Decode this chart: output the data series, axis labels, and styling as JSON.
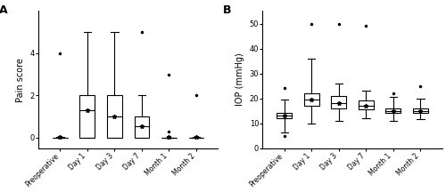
{
  "categories": [
    "Preoperative",
    "Day 1",
    "Day 3",
    "Day 7",
    "Month 1",
    "Month 2"
  ],
  "pain_boxes": [
    {
      "med": 0,
      "q1": 0,
      "q3": 0,
      "whislo": 0,
      "whishi": 0.05,
      "fliers": [
        4.0
      ]
    },
    {
      "med": 1.3,
      "q1": 0,
      "q3": 2,
      "whislo": 0,
      "whishi": 5,
      "fliers": []
    },
    {
      "med": 1.0,
      "q1": 0,
      "q3": 2,
      "whislo": 0,
      "whishi": 5,
      "fliers": []
    },
    {
      "med": 0.55,
      "q1": 0,
      "q3": 1,
      "whislo": 0,
      "whishi": 2,
      "fliers": [
        5.0
      ]
    },
    {
      "med": 0,
      "q1": 0,
      "q3": 0,
      "whislo": 0,
      "whishi": 0,
      "fliers": [
        0.3,
        3.0
      ]
    },
    {
      "med": 0,
      "q1": 0,
      "q3": 0,
      "whislo": 0,
      "whishi": 0.05,
      "fliers": [
        2.0
      ]
    }
  ],
  "iop_boxes": [
    {
      "med": 13,
      "q1": 12,
      "q3": 14,
      "whislo": 6.5,
      "whishi": 19.5,
      "fliers": [
        5.0,
        24.0
      ]
    },
    {
      "med": 19.5,
      "q1": 17,
      "q3": 22,
      "whislo": 10,
      "whishi": 36,
      "fliers": [
        50.0
      ]
    },
    {
      "med": 18,
      "q1": 16,
      "q3": 21,
      "whislo": 11,
      "whishi": 26,
      "fliers": [
        50.0
      ]
    },
    {
      "med": 17,
      "q1": 15.5,
      "q3": 19,
      "whislo": 12,
      "whishi": 23,
      "fliers": [
        49.0
      ]
    },
    {
      "med": 15,
      "q1": 14,
      "q3": 16,
      "whislo": 11,
      "whishi": 20.5,
      "fliers": [
        22.0
      ]
    },
    {
      "med": 15,
      "q1": 14,
      "q3": 16,
      "whislo": 11.5,
      "whishi": 20,
      "fliers": [
        25.0
      ]
    }
  ],
  "pain_ylim": [
    -0.5,
    6
  ],
  "iop_ylim": [
    0,
    55
  ],
  "pain_yticks": [
    0,
    2,
    4
  ],
  "iop_yticks": [
    0,
    10,
    20,
    30,
    40,
    50
  ],
  "pain_ylabel": "Pain score",
  "iop_ylabel": "IOP (mmHg)",
  "label_A": "A",
  "label_B": "B",
  "pain_means": [
    0.05,
    1.3,
    1.0,
    0.55,
    0.05,
    0.05
  ],
  "iop_means": [
    13.0,
    19.5,
    18.0,
    17.0,
    15.0,
    15.0
  ]
}
